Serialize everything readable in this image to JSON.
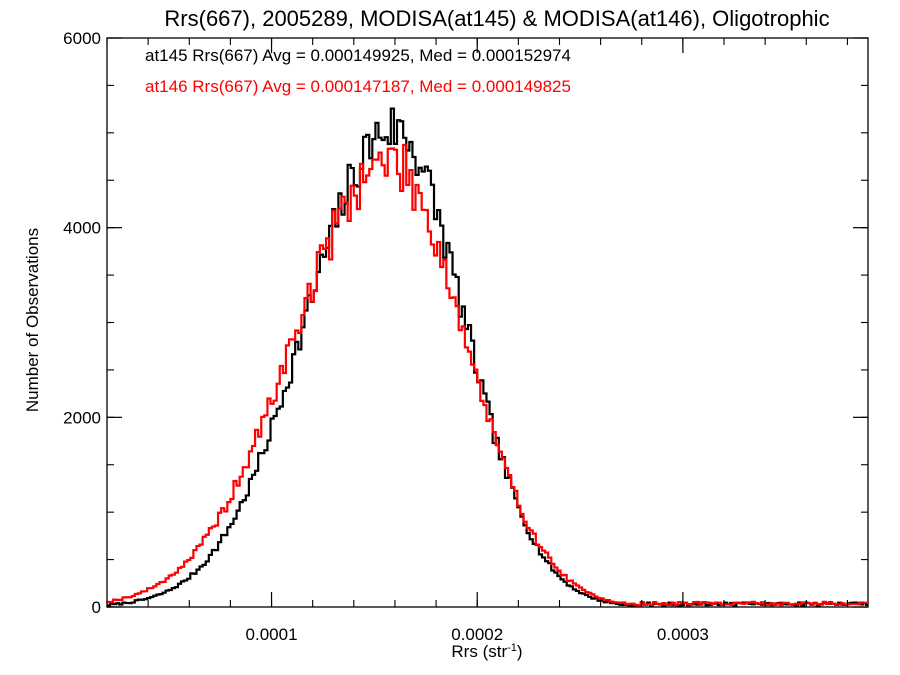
{
  "chart_data": {
    "type": "histogram",
    "title": "Rrs(667), 2005289, MODISA(at145) & MODISA(at146), Oligotrophic",
    "xlabel_main": "Rrs (str",
    "xlabel_sup": "-1",
    "xlabel_close": ")",
    "ylabel": "Number of Observations",
    "xlim": [
      2e-05,
      0.00039
    ],
    "ylim": [
      0,
      6000
    ],
    "x_ticks": [
      {
        "value": 0.0001,
        "label": "0.0001"
      },
      {
        "value": 0.0002,
        "label": "0.0002"
      },
      {
        "value": 0.0003,
        "label": "0.0003"
      }
    ],
    "y_ticks": [
      {
        "value": 0,
        "label": "0"
      },
      {
        "value": 2000,
        "label": "2000"
      },
      {
        "value": 4000,
        "label": "4000"
      },
      {
        "value": 6000,
        "label": "6000"
      }
    ],
    "legend": [
      {
        "text": "at145 Rrs(667) Avg = 0.000149925, Med = 0.000152974",
        "color": "#000000"
      },
      {
        "text": "at146 Rrs(667) Avg = 0.000147187, Med = 0.000149825",
        "color": "#ff0000"
      }
    ],
    "series": [
      {
        "color": "#000000",
        "bin_start": 2e-05,
        "bin_width": 1.5e-06,
        "peak": 0.000159,
        "peak_count": 5050,
        "sigma_left": 4.2e-05,
        "sigma_right": 3.45e-05,
        "tail_floor": 40,
        "noise_seed": 7,
        "noise_scale": 0.055
      },
      {
        "color": "#ff0000",
        "bin_start": 2e-05,
        "bin_width": 1.5e-06,
        "peak": 0.000157,
        "peak_count": 4700,
        "sigma_left": 4.6e-05,
        "sigma_right": 3.7e-05,
        "tail_floor": 45,
        "noise_seed": 19,
        "noise_scale": 0.06
      }
    ]
  }
}
